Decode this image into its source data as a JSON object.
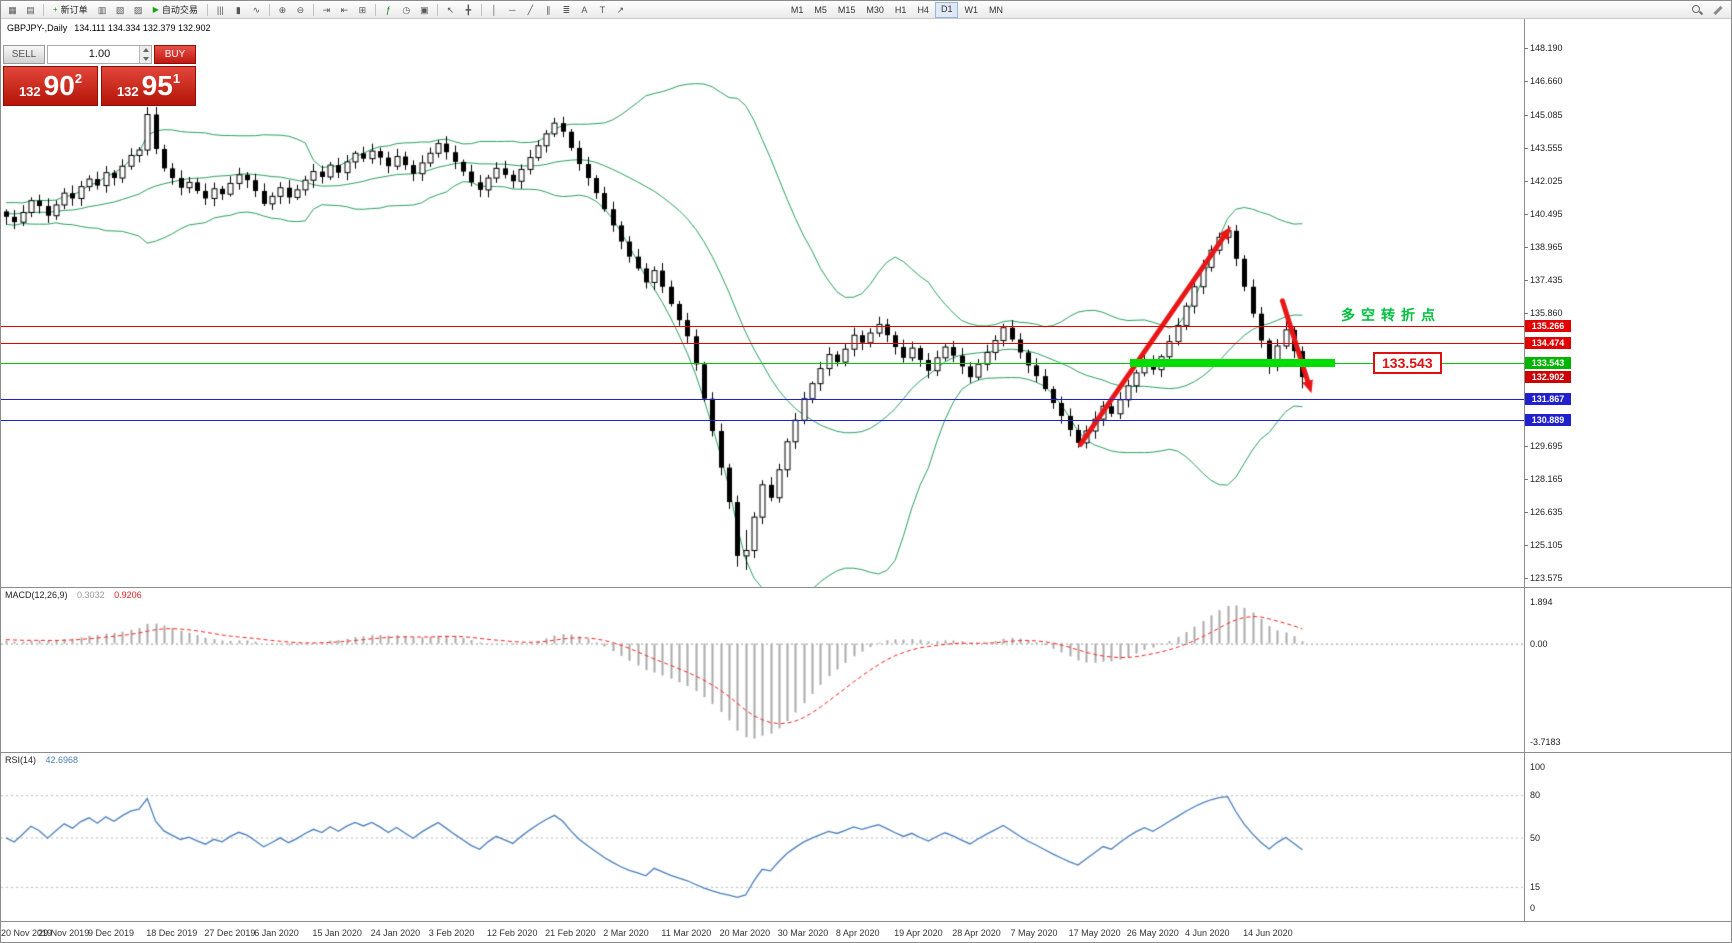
{
  "toolbar": {
    "items": [
      {
        "t": "icon",
        "name": "new-chart",
        "g": "▦"
      },
      {
        "t": "icon",
        "name": "profiles",
        "g": "▤"
      },
      {
        "t": "sep"
      },
      {
        "t": "button",
        "name": "new-order",
        "label": "新订单",
        "g": "+",
        "gc": "#1e8e1e"
      },
      {
        "t": "icon",
        "name": "market-watch",
        "g": "▥"
      },
      {
        "t": "icon",
        "name": "data-window",
        "g": "▧"
      },
      {
        "t": "icon",
        "name": "navigator",
        "g": "▨"
      },
      {
        "t": "button",
        "name": "autotrading",
        "label": "自动交易",
        "g": "▶",
        "gc": "#17a317"
      },
      {
        "t": "sep"
      },
      {
        "t": "icon",
        "name": "bar-chart",
        "g": "|||"
      },
      {
        "t": "icon",
        "name": "candlestick-chart",
        "g": "▮"
      },
      {
        "t": "icon",
        "name": "line-chart",
        "g": "∿"
      },
      {
        "t": "sep"
      },
      {
        "t": "icon",
        "name": "zoom-in",
        "g": "⊕"
      },
      {
        "t": "icon",
        "name": "zoom-out",
        "g": "⊖"
      },
      {
        "t": "sep"
      },
      {
        "t": "icon",
        "name": "auto-scroll",
        "g": "⇥"
      },
      {
        "t": "icon",
        "name": "chart-shift",
        "g": "⇤"
      },
      {
        "t": "icon",
        "name": "tile-windows",
        "g": "⊞"
      },
      {
        "t": "sep"
      },
      {
        "t": "icon",
        "name": "indicators",
        "g": "ƒ",
        "gc": "#1e7e1e"
      },
      {
        "t": "icon",
        "name": "periods",
        "g": "◷"
      },
      {
        "t": "icon",
        "name": "templates",
        "g": "▣"
      },
      {
        "t": "sep"
      },
      {
        "t": "icon",
        "name": "cursor",
        "g": "↖"
      },
      {
        "t": "icon",
        "name": "crosshair",
        "g": "╋"
      },
      {
        "t": "sep"
      },
      {
        "t": "icon",
        "name": "vertical-line",
        "g": "│"
      },
      {
        "t": "icon",
        "name": "horizontal-line",
        "g": "─"
      },
      {
        "t": "icon",
        "name": "trendline",
        "g": "╱"
      },
      {
        "t": "icon",
        "name": "equidistant-channel",
        "g": "∥"
      },
      {
        "t": "icon",
        "name": "fibonacci-retracement",
        "g": "≣"
      },
      {
        "t": "icon",
        "name": "text",
        "g": "A"
      },
      {
        "t": "icon",
        "name": "text-label",
        "g": "T"
      },
      {
        "t": "icon",
        "name": "arrows",
        "g": "↗"
      },
      {
        "t": "spacer"
      },
      {
        "t": "tfgroup"
      },
      {
        "t": "flex"
      },
      {
        "t": "search",
        "name": "search"
      },
      {
        "t": "pencil",
        "name": "edit"
      }
    ],
    "timeframes": [
      "M1",
      "M5",
      "M15",
      "M30",
      "H1",
      "H4",
      "D1",
      "W1",
      "MN"
    ],
    "active_timeframe": "D1"
  },
  "trade_panel": {
    "sell_label": "SELL",
    "buy_label": "BUY",
    "volume": "1.00",
    "sell_price": {
      "prefix": "132",
      "digits": "90",
      "sup": "2"
    },
    "buy_price": {
      "prefix": "132",
      "digits": "95",
      "sup": "1"
    }
  },
  "annotations": {
    "turning_point_text": "多空转折点",
    "turning_point_color": "#00c040",
    "callout_text": "133.543",
    "callout_color": "#dd1111",
    "arrow_color": "#e81616",
    "up_arrow": {
      "from": [
        129.3,
        129.78
      ],
      "to": [
        147.4,
        139.9
      ]
    },
    "down_arrow": {
      "from": [
        153.6,
        136.45
      ],
      "to": [
        157.1,
        132.15
      ]
    },
    "highlight_bar": {
      "price": 133.543,
      "color": "#00dd00"
    }
  },
  "chart_data": [
    {
      "type": "candlestick",
      "symbol": "GBPJPY-,Daily",
      "timeframe": "Daily",
      "ohlc_text": "134.111 134.334 132.379 132.902",
      "y_ticks": [
        "148.190",
        "146.660",
        "145.085",
        "143.555",
        "142.025",
        "140.495",
        "138.965",
        "137.435",
        "135.860",
        "129.695",
        "128.165",
        "126.635",
        "125.105",
        "123.575"
      ],
      "y_range": [
        123.575,
        148.19
      ],
      "x_labels": [
        {
          "text": "20 Nov 2019",
          "i": 0
        },
        {
          "text": "29 Nov 2019",
          "i": 7
        },
        {
          "text": "9 Dec 2019",
          "i": 13
        },
        {
          "text": "18 Dec 2019",
          "i": 20
        },
        {
          "text": "27 Dec 2019",
          "i": 27
        },
        {
          "text": "6 Jan 2020",
          "i": 33
        },
        {
          "text": "15 Jan 2020",
          "i": 40
        },
        {
          "text": "24 Jan 2020",
          "i": 47
        },
        {
          "text": "3 Feb 2020",
          "i": 54
        },
        {
          "text": "12 Feb 2020",
          "i": 61
        },
        {
          "text": "21 Feb 2020",
          "i": 68
        },
        {
          "text": "2 Mar 2020",
          "i": 75
        },
        {
          "text": "11 Mar 2020",
          "i": 82
        },
        {
          "text": "20 Mar 2020",
          "i": 89
        },
        {
          "text": "30 Mar 2020",
          "i": 96
        },
        {
          "text": "8 Apr 2020",
          "i": 103
        },
        {
          "text": "19 Apr 2020",
          "i": 110
        },
        {
          "text": "28 Apr 2020",
          "i": 117
        },
        {
          "text": "7 May 2020",
          "i": 124
        },
        {
          "text": "17 May 2020",
          "i": 131
        },
        {
          "text": "26 May 2020",
          "i": 138
        },
        {
          "text": "4 Jun 2020",
          "i": 145
        },
        {
          "text": "14 Jun 2020",
          "i": 152
        }
      ],
      "warmup": [
        139.6,
        139.9,
        139.3,
        139.0,
        139.4,
        139.8,
        140.2,
        139.9,
        139.5,
        139.2,
        139.6,
        140.0,
        140.3,
        140.0,
        139.7,
        140.1,
        140.5,
        140.2,
        139.8,
        140.2,
        140.6,
        140.3,
        140.0,
        140.4,
        140.7,
        140.4,
        140.1,
        140.5,
        140.8,
        140.5,
        140.2,
        140.6,
        140.9,
        140.6,
        140.3,
        140.7,
        141.0,
        140.7,
        140.4,
        140.5
      ],
      "closes": [
        140.35,
        140.1,
        140.55,
        141.1,
        140.85,
        140.4,
        140.9,
        141.45,
        141.2,
        141.75,
        142.1,
        141.8,
        142.4,
        142.15,
        142.7,
        143.2,
        143.45,
        145.1,
        143.5,
        142.6,
        142.15,
        141.7,
        141.95,
        141.55,
        141.2,
        141.65,
        141.4,
        141.9,
        142.3,
        142.05,
        141.55,
        140.95,
        141.3,
        141.7,
        141.25,
        141.6,
        142.05,
        142.45,
        142.2,
        142.75,
        142.4,
        142.9,
        143.3,
        143.05,
        143.4,
        143.1,
        142.7,
        143.15,
        142.75,
        142.35,
        142.85,
        143.3,
        143.75,
        143.35,
        142.9,
        142.45,
        141.95,
        141.6,
        142.15,
        142.6,
        142.3,
        142.0,
        142.55,
        143.1,
        143.65,
        144.2,
        144.7,
        144.3,
        143.55,
        142.8,
        142.15,
        141.45,
        140.7,
        139.95,
        139.2,
        138.5,
        137.95,
        137.3,
        137.85,
        137.1,
        136.3,
        135.55,
        134.8,
        133.5,
        131.9,
        130.4,
        128.7,
        127.1,
        124.6,
        124.85,
        126.4,
        127.9,
        127.3,
        128.6,
        129.9,
        130.9,
        131.9,
        132.6,
        133.3,
        133.95,
        133.6,
        134.2,
        134.85,
        134.5,
        134.95,
        135.35,
        134.85,
        134.3,
        133.8,
        134.25,
        133.7,
        133.2,
        133.8,
        134.3,
        133.9,
        133.4,
        132.9,
        133.5,
        134.05,
        134.6,
        135.2,
        134.65,
        134.05,
        133.45,
        132.95,
        132.35,
        131.7,
        131.1,
        130.45,
        129.85,
        130.4,
        130.95,
        131.55,
        131.2,
        131.85,
        132.5,
        133.1,
        133.6,
        133.25,
        133.85,
        134.55,
        135.3,
        136.2,
        137.1,
        138.0,
        138.8,
        139.4,
        139.7,
        138.4,
        137.1,
        135.85,
        134.6,
        133.4,
        134.35,
        135.1,
        134.11,
        132.902
      ],
      "overrides": {
        "17": [
          143.45,
          145.45,
          143.2,
          145.1
        ],
        "66": [
          144.2,
          144.95,
          144.05,
          144.7
        ],
        "88": [
          127.1,
          127.4,
          124.1,
          124.6
        ],
        "89": [
          124.6,
          125.8,
          123.95,
          124.85
        ],
        "129": [
          130.45,
          130.7,
          129.62,
          129.85
        ],
        "147": [
          139.4,
          139.95,
          139.1,
          139.7
        ],
        "154": [
          134.35,
          135.85,
          134.2,
          135.1
        ],
        "156": [
          134.111,
          134.334,
          132.379,
          132.902
        ]
      },
      "bollinger": {
        "period": 20,
        "deviation": 2,
        "color": "#2a9e5e"
      },
      "levels": [
        {
          "price": 135.266,
          "label": "135.266",
          "color": "#e00000",
          "box_bg": "#e00000"
        },
        {
          "price": 134.474,
          "label": "134.474",
          "color": "#e00000",
          "box_bg": "#e00000"
        },
        {
          "price": 133.543,
          "label": "133.543",
          "color": "#00c800",
          "box_bg": "#00b400"
        },
        {
          "price": 131.867,
          "label": "131.867",
          "color": "#2020cc",
          "box_bg": "#2020cc"
        },
        {
          "price": 130.889,
          "label": "130.889",
          "color": "#2020cc",
          "box_bg": "#2020cc"
        }
      ],
      "bid_marker": {
        "price": 132.902,
        "label": "132.902",
        "box_bg": "#cc0000"
      }
    },
    {
      "type": "macd",
      "label": "MACD(12,26,9)",
      "params": [
        12,
        26,
        9
      ],
      "value_main": "0.3032",
      "value_signal": "0.9206",
      "axis_labels": [
        "1.894",
        "0.00",
        "-3.7183"
      ],
      "histogram_color": "#ababab",
      "signal_color": "#ff2020"
    },
    {
      "type": "rsi",
      "label": "RSI(14)",
      "period": 14,
      "value": "42.6968",
      "axis_labels": [
        "100",
        "80",
        "50",
        "15",
        "0"
      ],
      "levels": [
        80,
        50,
        15
      ],
      "line_color": "#4a7ebb"
    }
  ]
}
